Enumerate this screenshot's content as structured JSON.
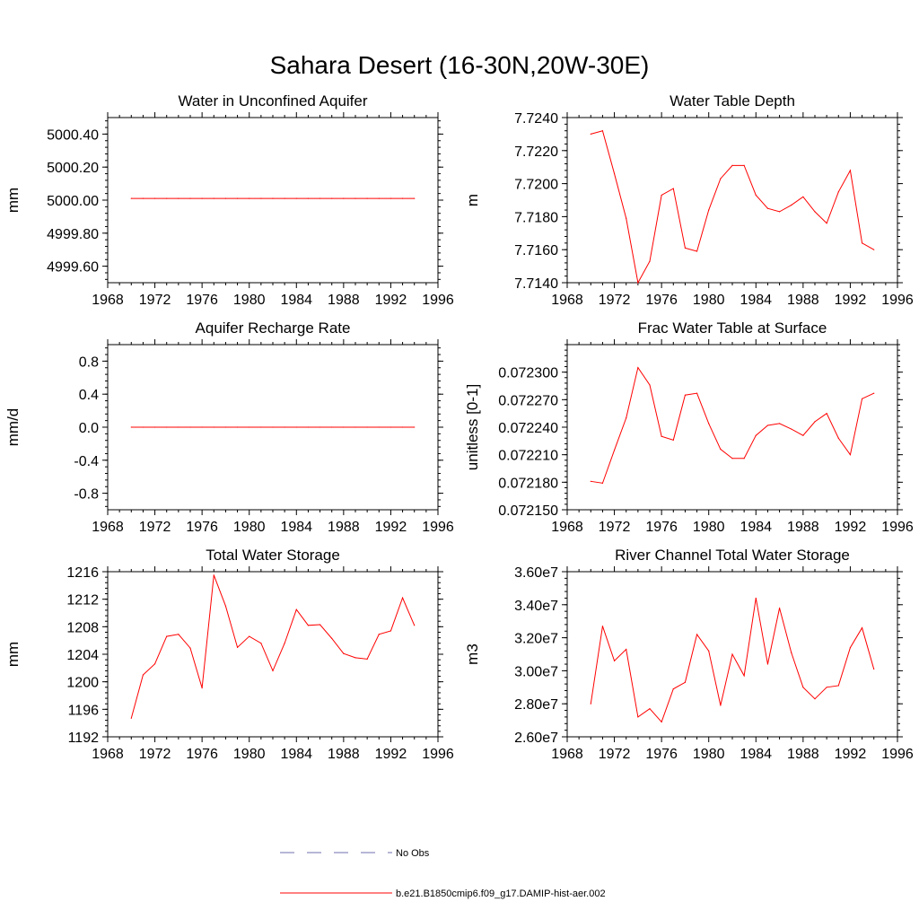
{
  "figure": {
    "title": "Sahara Desert (16-30N,20W-30E)"
  },
  "legend": {
    "entries": [
      {
        "label": "No Obs",
        "style": "dashed",
        "color": "#6f6fb0"
      },
      {
        "label": "b.e21.B1850cmip6.f09_g17.DAMIP-hist-aer.002",
        "style": "solid",
        "color": "#ff0000"
      }
    ]
  },
  "chart_data": [
    {
      "type": "line",
      "title": "Water in Unconfined Aquifer",
      "ylabel": "mm",
      "xlim": [
        1968,
        1996
      ],
      "ylim": [
        4999.5,
        5000.5
      ],
      "xticks": [
        1968,
        1972,
        1976,
        1980,
        1984,
        1988,
        1992,
        1996
      ],
      "yticks": [
        4999.6,
        4999.8,
        5000.0,
        5000.2,
        5000.4
      ],
      "ytick_labels": [
        "4999.60",
        "4999.80",
        "5000.00",
        "5000.20",
        "5000.40"
      ],
      "series": [
        {
          "color": "#ff0000",
          "x": [
            1970,
            1971,
            1972,
            1973,
            1974,
            1975,
            1976,
            1977,
            1978,
            1979,
            1980,
            1981,
            1982,
            1983,
            1984,
            1985,
            1986,
            1987,
            1988,
            1989,
            1990,
            1991,
            1992,
            1993,
            1994
          ],
          "values": [
            5000.01,
            5000.01,
            5000.01,
            5000.01,
            5000.01,
            5000.01,
            5000.01,
            5000.01,
            5000.01,
            5000.01,
            5000.01,
            5000.01,
            5000.01,
            5000.01,
            5000.01,
            5000.01,
            5000.01,
            5000.01,
            5000.01,
            5000.01,
            5000.01,
            5000.01,
            5000.01,
            5000.01,
            5000.01
          ]
        }
      ]
    },
    {
      "type": "line",
      "title": "Water Table Depth",
      "ylabel": "m",
      "xlim": [
        1968,
        1996
      ],
      "ylim": [
        7.714,
        7.724
      ],
      "xticks": [
        1968,
        1972,
        1976,
        1980,
        1984,
        1988,
        1992,
        1996
      ],
      "yticks": [
        7.714,
        7.716,
        7.718,
        7.72,
        7.722,
        7.724
      ],
      "ytick_labels": [
        "7.7140",
        "7.7160",
        "7.7180",
        "7.7200",
        "7.7220",
        "7.7240"
      ],
      "series": [
        {
          "color": "#ff0000",
          "x": [
            1970,
            1971,
            1972,
            1973,
            1974,
            1975,
            1976,
            1977,
            1978,
            1979,
            1980,
            1981,
            1982,
            1983,
            1984,
            1985,
            1986,
            1987,
            1988,
            1989,
            1990,
            1991,
            1992,
            1993,
            1994
          ],
          "values": [
            7.723,
            7.7232,
            7.7206,
            7.7179,
            7.714,
            7.7153,
            7.7193,
            7.7197,
            7.7161,
            7.7159,
            7.7184,
            7.7203,
            7.7211,
            7.7211,
            7.7193,
            7.7185,
            7.7183,
            7.7187,
            7.7192,
            7.7183,
            7.7176,
            7.7195,
            7.7208,
            7.7164,
            7.716
          ]
        }
      ]
    },
    {
      "type": "line",
      "title": "Aquifer Recharge Rate",
      "ylabel": "mm/d",
      "xlim": [
        1968,
        1996
      ],
      "ylim": [
        -1.0,
        1.0
      ],
      "xticks": [
        1968,
        1972,
        1976,
        1980,
        1984,
        1988,
        1992,
        1996
      ],
      "yticks": [
        -0.8,
        -0.4,
        0.0,
        0.4,
        0.8
      ],
      "ytick_labels": [
        "-0.8",
        "-0.4",
        "0.0",
        "0.4",
        "0.8"
      ],
      "series": [
        {
          "color": "#ff0000",
          "x": [
            1970,
            1971,
            1972,
            1973,
            1974,
            1975,
            1976,
            1977,
            1978,
            1979,
            1980,
            1981,
            1982,
            1983,
            1984,
            1985,
            1986,
            1987,
            1988,
            1989,
            1990,
            1991,
            1992,
            1993,
            1994
          ],
          "values": [
            0,
            0,
            0,
            0,
            0,
            0,
            0,
            0,
            0,
            0,
            0,
            0,
            0,
            0,
            0,
            0,
            0,
            0,
            0,
            0,
            0,
            0,
            0,
            0,
            0
          ]
        }
      ]
    },
    {
      "type": "line",
      "title": "Frac Water Table at Surface",
      "ylabel": "unitless [0-1]",
      "xlim": [
        1968,
        1996
      ],
      "ylim": [
        0.07215,
        0.07233
      ],
      "xticks": [
        1968,
        1972,
        1976,
        1980,
        1984,
        1988,
        1992,
        1996
      ],
      "yticks": [
        0.07215,
        0.07218,
        0.07221,
        0.07224,
        0.07227,
        0.0723
      ],
      "ytick_labels": [
        "0.072150",
        "0.072180",
        "0.072210",
        "0.072240",
        "0.072270",
        "0.072300"
      ],
      "series": [
        {
          "color": "#ff0000",
          "x": [
            1970,
            1971,
            1972,
            1973,
            1974,
            1975,
            1976,
            1977,
            1978,
            1979,
            1980,
            1981,
            1982,
            1983,
            1984,
            1985,
            1986,
            1987,
            1988,
            1989,
            1990,
            1991,
            1992,
            1993,
            1994
          ],
          "values": [
            0.072181,
            0.072179,
            0.072215,
            0.07225,
            0.072305,
            0.072286,
            0.07223,
            0.072226,
            0.072275,
            0.072277,
            0.072244,
            0.072216,
            0.072206,
            0.072206,
            0.072231,
            0.072242,
            0.072244,
            0.072238,
            0.072231,
            0.072246,
            0.072255,
            0.072228,
            0.07221,
            0.072271,
            0.072277
          ]
        }
      ]
    },
    {
      "type": "line",
      "title": "Total Water Storage",
      "ylabel": "mm",
      "xlim": [
        1968,
        1996
      ],
      "ylim": [
        1192,
        1216
      ],
      "xticks": [
        1968,
        1972,
        1976,
        1980,
        1984,
        1988,
        1992,
        1996
      ],
      "yticks": [
        1192,
        1196,
        1200,
        1204,
        1208,
        1212,
        1216
      ],
      "ytick_labels": [
        "1192",
        "1196",
        "1200",
        "1204",
        "1208",
        "1212",
        "1216"
      ],
      "series": [
        {
          "color": "#ff0000",
          "x": [
            1970,
            1971,
            1972,
            1973,
            1974,
            1975,
            1976,
            1977,
            1978,
            1979,
            1980,
            1981,
            1982,
            1983,
            1984,
            1985,
            1986,
            1987,
            1988,
            1989,
            1990,
            1991,
            1992,
            1993,
            1994
          ],
          "values": [
            1194.7,
            1201.0,
            1202.6,
            1206.6,
            1206.9,
            1204.9,
            1199.1,
            1215.5,
            1211.0,
            1205.0,
            1206.6,
            1205.6,
            1201.6,
            1205.6,
            1210.5,
            1208.2,
            1208.3,
            1206.3,
            1204.1,
            1203.5,
            1203.3,
            1206.9,
            1207.4,
            1212.2,
            1208.2
          ]
        }
      ]
    },
    {
      "type": "line",
      "title": "River Channel Total Water Storage",
      "ylabel": "m3",
      "xlim": [
        1968,
        1996
      ],
      "ylim": [
        26000000,
        36000000
      ],
      "xticks": [
        1968,
        1972,
        1976,
        1980,
        1984,
        1988,
        1992,
        1996
      ],
      "yticks": [
        26000000,
        28000000,
        30000000,
        32000000,
        34000000,
        36000000
      ],
      "ytick_labels": [
        "2.60e7",
        "2.80e7",
        "3.00e7",
        "3.20e7",
        "3.40e7",
        "3.60e7"
      ],
      "series": [
        {
          "color": "#ff0000",
          "x": [
            1970,
            1971,
            1972,
            1973,
            1974,
            1975,
            1976,
            1977,
            1978,
            1979,
            1980,
            1981,
            1982,
            1983,
            1984,
            1985,
            1986,
            1987,
            1988,
            1989,
            1990,
            1991,
            1992,
            1993,
            1994
          ],
          "values": [
            28000000,
            32700000,
            30600000,
            31300000,
            27200000,
            27700000,
            26900000,
            28900000,
            29300000,
            32200000,
            31200000,
            27900000,
            31000000,
            29700000,
            34400000,
            30400000,
            33800000,
            31100000,
            29000000,
            28300000,
            29000000,
            29100000,
            31400000,
            32600000,
            30100000
          ]
        }
      ]
    }
  ]
}
